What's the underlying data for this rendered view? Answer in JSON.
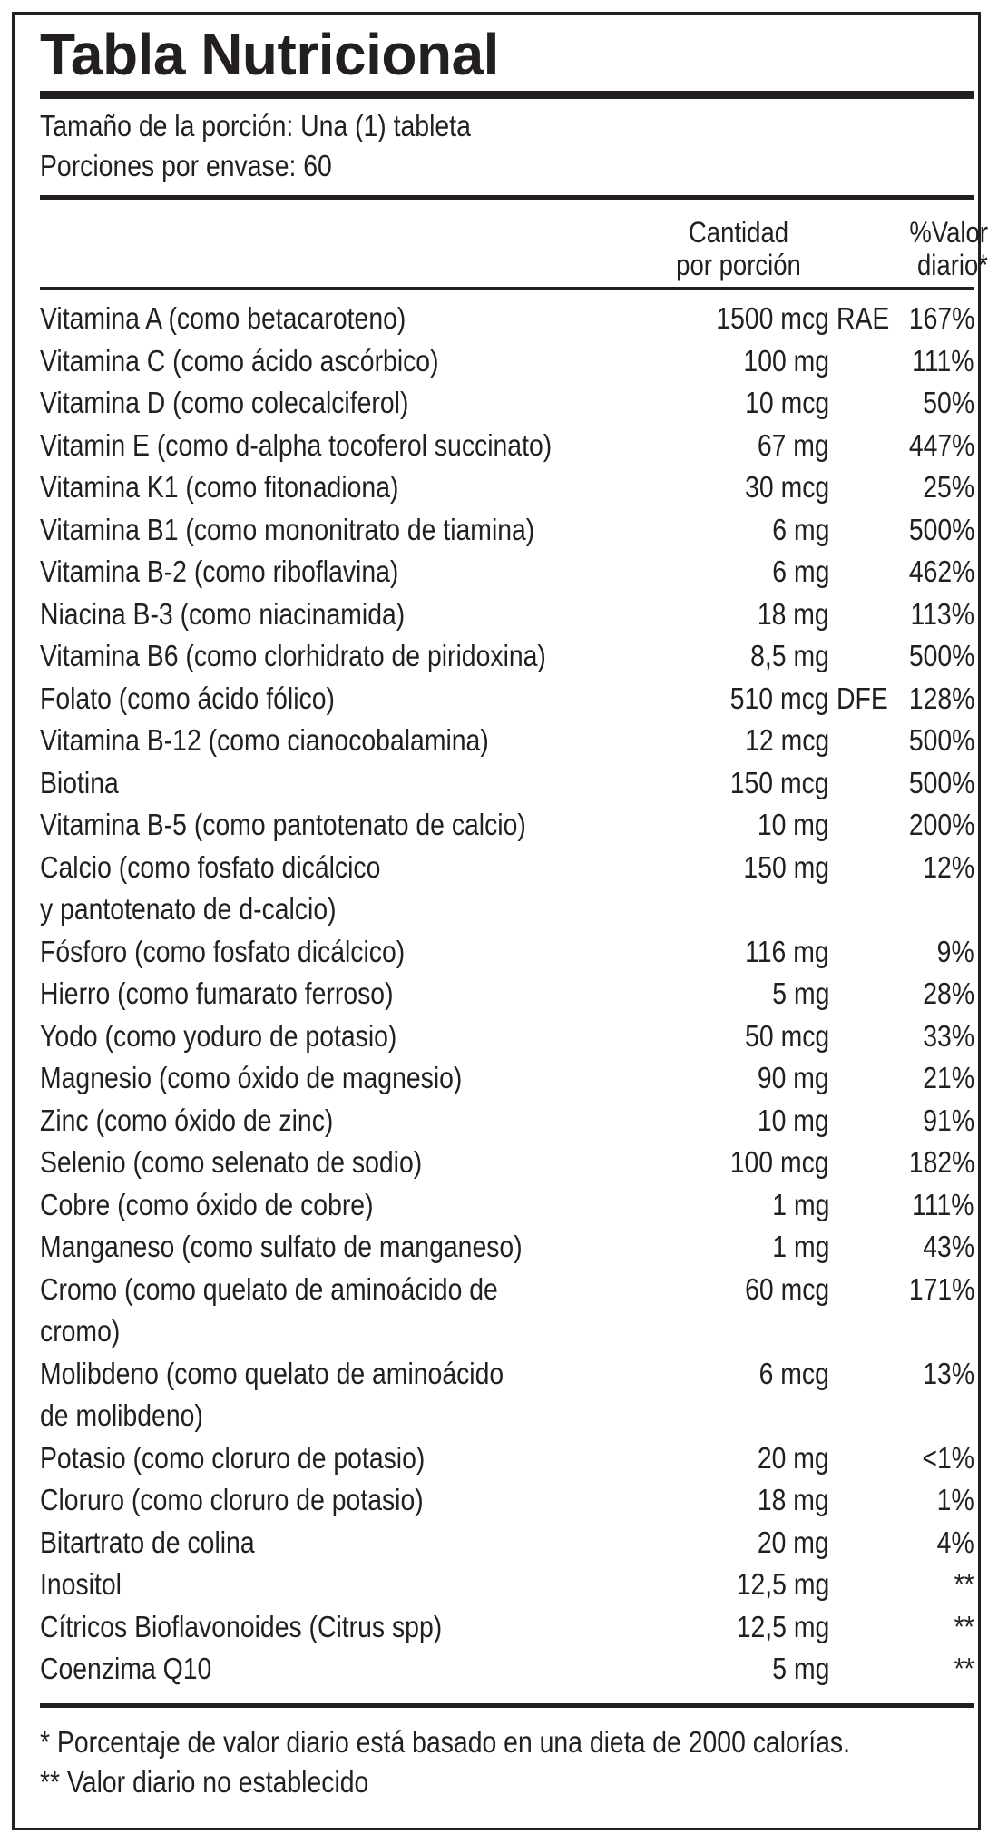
{
  "title": "Tabla Nutricional",
  "serving": {
    "size": "Tamaño de la porción: Una (1) tableta",
    "servings": "Porciones por envase: 60"
  },
  "header": {
    "amount_line1": "Cantidad",
    "amount_line2": "por porción",
    "dv_line1": "%Valor",
    "dv_line2": "diario*"
  },
  "rows": [
    {
      "name": "Vitamina A (como betacaroteno)",
      "amount": "1500 mcg",
      "unit2": "RAE",
      "dv": "167%"
    },
    {
      "name": "Vitamina C (como ácido ascórbico)",
      "amount": "100 mg",
      "dv": "111%"
    },
    {
      "name": "Vitamina D (como colecalciferol)",
      "amount": "10 mcg",
      "dv": "50%"
    },
    {
      "name": "Vitamin E (como d-alpha tocoferol succinato)",
      "amount": "67 mg",
      "dv": "447%"
    },
    {
      "name": "Vitamina K1 (como fitonadiona)",
      "amount": "30 mcg",
      "dv": "25%"
    },
    {
      "name": "Vitamina B1 (como mononitrato de tiamina)",
      "amount": "6 mg",
      "dv": "500%"
    },
    {
      "name": "Vitamina B-2 (como riboflavina)",
      "amount": "6 mg",
      "dv": "462%"
    },
    {
      "name": "Niacina B-3 (como niacinamida)",
      "amount": "18 mg",
      "dv": "113%"
    },
    {
      "name": "Vitamina B6 (como clorhidrato de piridoxina)",
      "amount": "8,5 mg",
      "dv": "500%"
    },
    {
      "name": "Folato (como ácido fólico)",
      "amount": "510 mcg",
      "unit2": "DFE",
      "dv": "128%"
    },
    {
      "name": "Vitamina B-12 (como cianocobalamina)",
      "amount": "12 mcg",
      "dv": "500%"
    },
    {
      "name": "Biotina",
      "amount": "150 mcg",
      "dv": "500%"
    },
    {
      "name": "Vitamina B-5 (como pantotenato de calcio)",
      "amount": "10 mg",
      "dv": "200%"
    },
    {
      "name": "Calcio (como fosfato dicálcico",
      "name2": "y pantotenato de d-calcio)",
      "amount": "150 mg",
      "dv": "12%"
    },
    {
      "name": "Fósforo (como fosfato dicálcico)",
      "amount": "116 mg",
      "dv": "9%"
    },
    {
      "name": "Hierro (como fumarato ferroso)",
      "amount": "5 mg",
      "dv": "28%"
    },
    {
      "name": "Yodo (como yoduro de potasio)",
      "amount": "50 mcg",
      "dv": "33%"
    },
    {
      "name": "Magnesio (como óxido de magnesio)",
      "amount": "90  mg",
      "dv": "21%"
    },
    {
      "name": "Zinc (como óxido de zinc)",
      "amount": "10 mg",
      "dv": "91%"
    },
    {
      "name": "Selenio (como selenato de sodio)",
      "amount": "100 mcg",
      "dv": "182%"
    },
    {
      "name": "Cobre (como óxido de cobre)",
      "amount": "1 mg",
      "dv": "111%"
    },
    {
      "name": "Manganeso (como sulfato de manganeso)",
      "amount": "1 mg",
      "dv": "43%"
    },
    {
      "name": "Cromo (como quelato de aminoácido de",
      "name2": "cromo)",
      "amount": "60 mcg",
      "dv": "171%"
    },
    {
      "name": "Molibdeno (como quelato de aminoácido",
      "name2": "de molibdeno)",
      "amount": "6 mcg",
      "dv": "13%"
    },
    {
      "name": "Potasio (como cloruro de potasio)",
      "amount": "20 mg",
      "dv": "<1%"
    },
    {
      "name": "Cloruro (como cloruro de potasio)",
      "amount": "18 mg",
      "dv": "1%"
    },
    {
      "name": "Bitartrato de colina",
      "amount": "20 mg",
      "dv": "4%"
    },
    {
      "name": "Inositol",
      "amount": "12,5 mg",
      "dv": "**"
    },
    {
      "name": "Cítricos Bioflavonoides (Citrus spp)",
      "amount": "12,5 mg",
      "dv": "**"
    },
    {
      "name": "Coenzima Q10",
      "amount": "5 mg",
      "dv": "**"
    }
  ],
  "footnotes": {
    "note1": "* Porcentaje de valor diario está basado en una dieta de 2000 calorías.",
    "note2": "** Valor diario no establecido"
  }
}
